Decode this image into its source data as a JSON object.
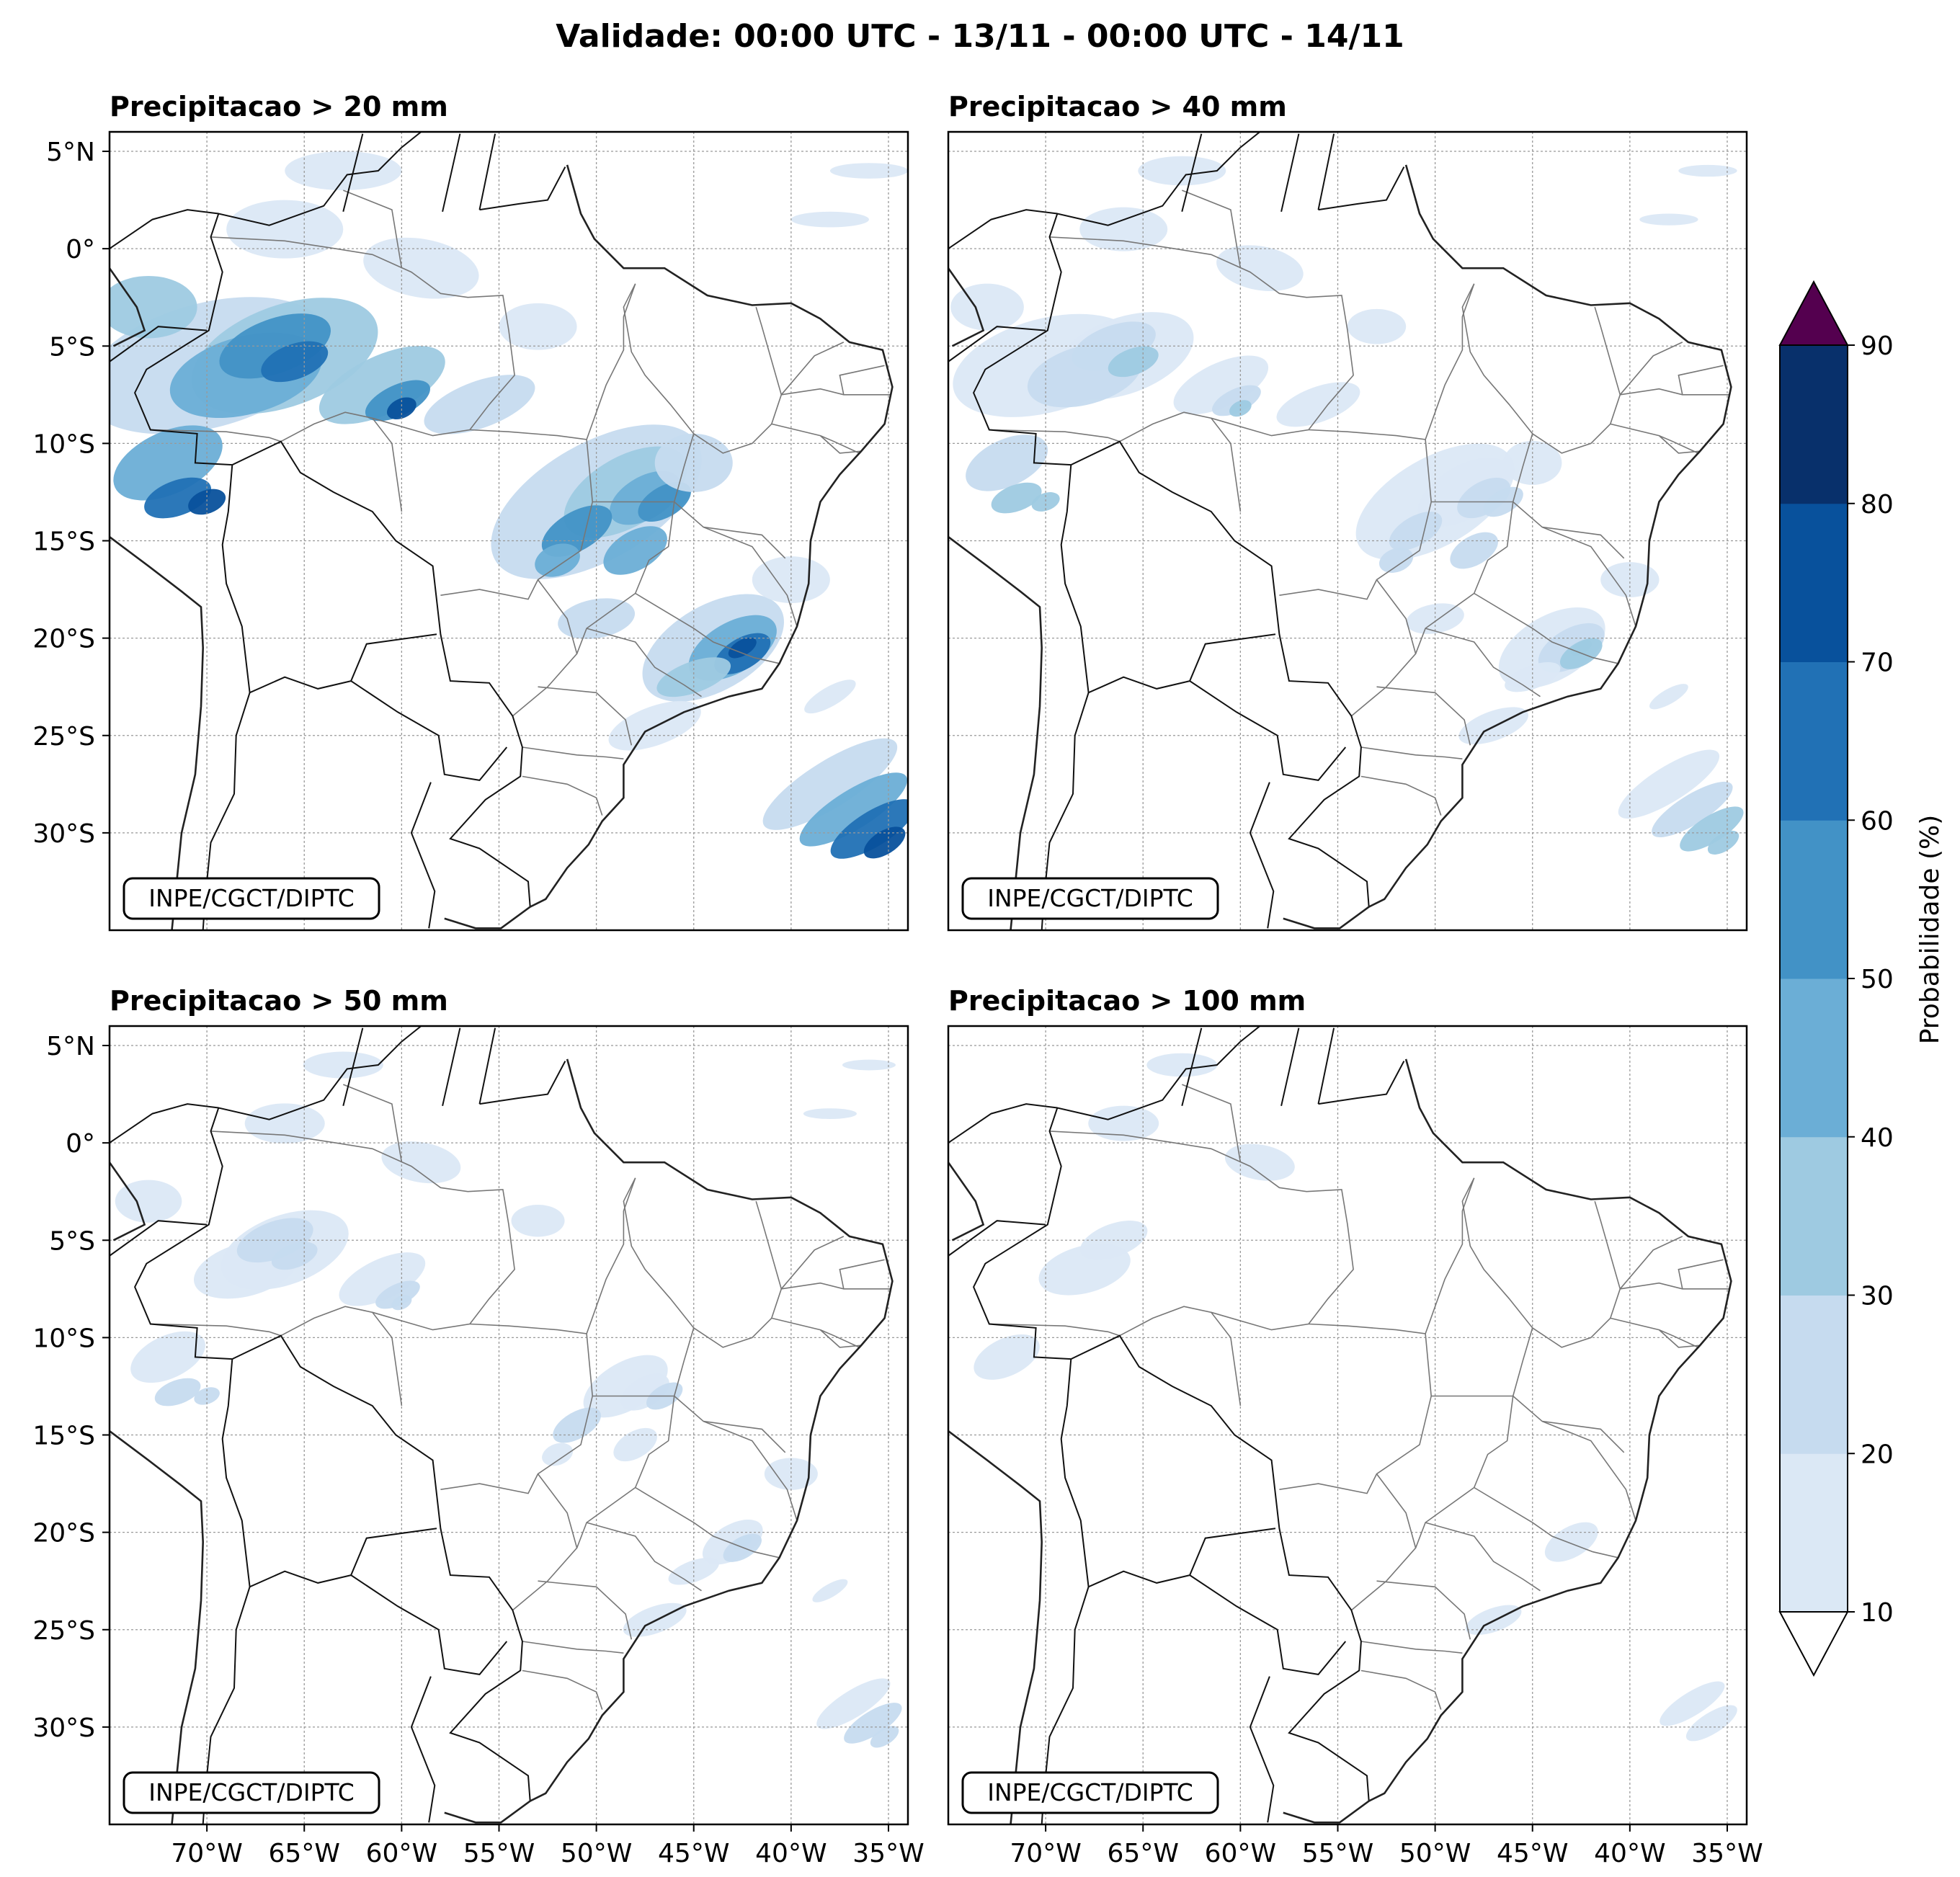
{
  "figure": {
    "title": "Validade: 00:00 UTC - 13/11 - 00:00 UTC - 14/11"
  },
  "panels": [
    {
      "title": "Precipitacao > 20 mm",
      "credit": "INPE/CGCT/DIPTC",
      "intensity": 1.0
    },
    {
      "title": "Precipitacao > 40 mm",
      "credit": "INPE/CGCT/DIPTC",
      "intensity": 0.45
    },
    {
      "title": "Precipitacao > 50 mm",
      "credit": "INPE/CGCT/DIPTC",
      "intensity": 0.3
    },
    {
      "title": "Precipitacao > 100 mm",
      "credit": "INPE/CGCT/DIPTC",
      "intensity": 0.12
    }
  ],
  "axes": {
    "lon_ticks": [
      "70°W",
      "65°W",
      "60°W",
      "55°W",
      "50°W",
      "45°W",
      "40°W",
      "35°W"
    ],
    "lat_ticks": [
      "5°N",
      "0°",
      "5°S",
      "10°S",
      "15°S",
      "20°S",
      "25°S",
      "30°S"
    ],
    "lon_range": [
      -75,
      -34
    ],
    "lat_range": [
      -35,
      6
    ]
  },
  "colorbar": {
    "label": "Probabilidade (%)",
    "levels": [
      "10",
      "20",
      "30",
      "40",
      "50",
      "60",
      "70",
      "80",
      "90"
    ],
    "colors": [
      "#dbe8f5",
      "#c6dbef",
      "#9ecae1",
      "#6baed6",
      "#4292c6",
      "#2171b5",
      "#08519c",
      "#08306b"
    ],
    "over_color": "#54004f",
    "under_color": "#ffffff"
  }
}
